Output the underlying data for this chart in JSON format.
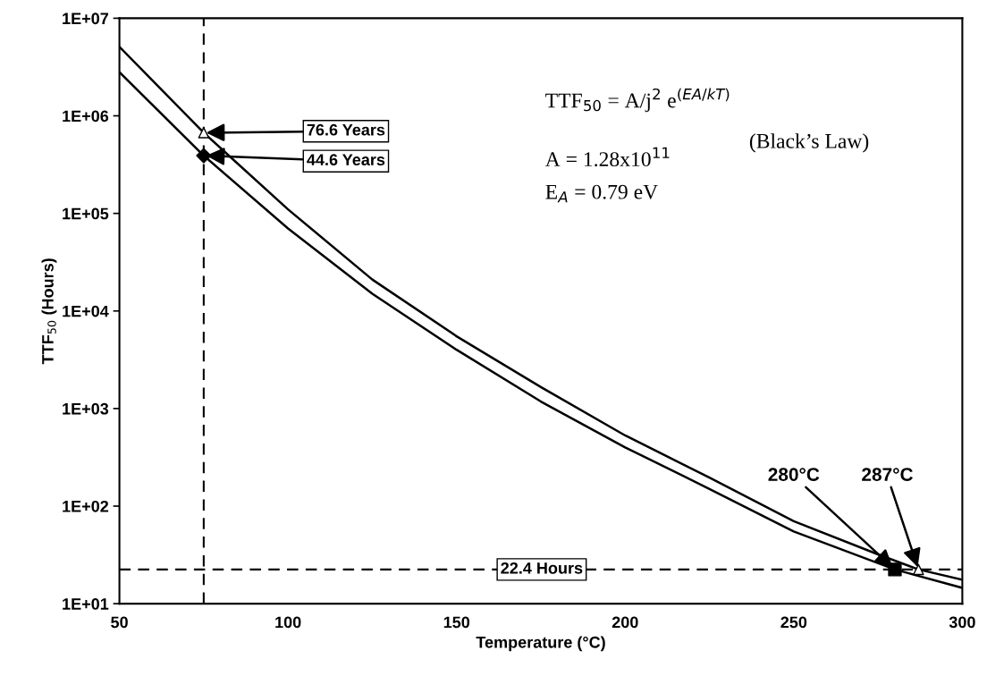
{
  "chart_data": {
    "type": "line",
    "xlabel": "Temperature (°C)",
    "ylabel": "TTF$_{50}$ (Hours)",
    "log": "y",
    "grid": false,
    "xlim": [
      50,
      300
    ],
    "xticks": [
      50,
      100,
      150,
      200,
      250,
      300
    ],
    "ylim": [
      10,
      10000000
    ],
    "yticks": [
      {
        "value": 10,
        "label": "1E+01"
      },
      {
        "value": 100,
        "label": "1E+02"
      },
      {
        "value": 1000,
        "label": "1E+03"
      },
      {
        "value": 10000,
        "label": "1E+04"
      },
      {
        "value": 100000,
        "label": "1E+05"
      },
      {
        "value": 1000000,
        "label": "1E+06"
      },
      {
        "value": 10000000,
        "label": "1E+07"
      }
    ],
    "series": [
      {
        "color": "#000000",
        "line_style": "solid",
        "marker": "none",
        "x": [
          50,
          75,
          100,
          125,
          150,
          175,
          200,
          225,
          250,
          275,
          287,
          300
        ],
        "values": [
          5100000,
          671000,
          110000,
          21000,
          5500,
          1660,
          530,
          196,
          70,
          32,
          22.4,
          17.6
        ]
      },
      {
        "color": "#000000",
        "line_style": "solid",
        "marker": "none",
        "x": [
          50,
          75,
          100,
          125,
          150,
          175,
          200,
          225,
          250,
          280,
          300
        ],
        "values": [
          2800000,
          391000,
          70000,
          15000,
          4000,
          1180,
          400,
          150,
          55,
          22.4,
          14.5
        ]
      },
      {
        "type": "scatter",
        "color": "#000000",
        "marker": "triangle",
        "x": [
          75,
          287
        ],
        "values": [
          671000,
          22.4
        ]
      },
      {
        "type": "scatter",
        "color": "#000000",
        "marker": "diamond",
        "x": [
          75
        ],
        "values": [
          391000
        ]
      },
      {
        "type": "scatter",
        "color": "#000000",
        "marker": "square",
        "x": [
          280
        ],
        "values": [
          22.4
        ]
      }
    ],
    "ref_lines": [
      {
        "axis": "y",
        "value": 22.4,
        "label": "22.4 Hours",
        "line_style": "dashed",
        "color": "#000000"
      },
      {
        "axis": "x",
        "value": 75,
        "label": null,
        "line_style": "dashed",
        "color": "#000000"
      }
    ],
    "annotations": [
      {
        "text": "76.6 Years",
        "x": 75,
        "y": 671000
      },
      {
        "text": "44.6 Years",
        "x": 75,
        "y": 391000
      },
      {
        "text": "280°C",
        "x": 280,
        "y": 22.4
      },
      {
        "text": "287°C",
        "x": 287,
        "y": 22.4
      },
      "TTF$_{50}$ = A/j$^{2}$ e$^{(EA/kT)}$",
      "A = 1.28x10$^{11}$",
      "E$_{A}$ = 0.79 eV",
      "(Black’s Law)"
    ]
  }
}
